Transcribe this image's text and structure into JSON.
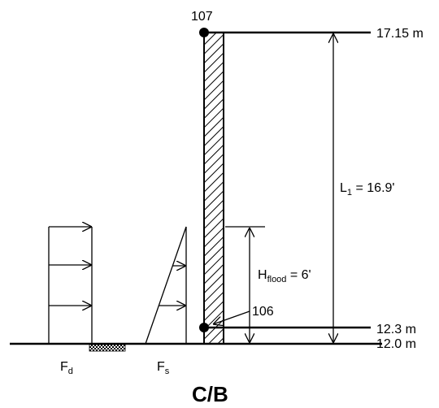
{
  "nodes": {
    "top": "107",
    "bottom": "106"
  },
  "elevations": {
    "top": "17.15 m",
    "flood_base": "12.3 m",
    "ground": "12.0 m"
  },
  "dimensions": {
    "L1_main": "L",
    "L1_sub": "1",
    "L1_value": " = 16.9'",
    "Hflood_main": "H",
    "Hflood_sub": "flood",
    "Hflood_value": " = 6'"
  },
  "forces": {
    "Fd_main": "F",
    "Fd_sub": "d",
    "Fs_main": "F",
    "Fs_sub": "s"
  },
  "caption": "C/B"
}
